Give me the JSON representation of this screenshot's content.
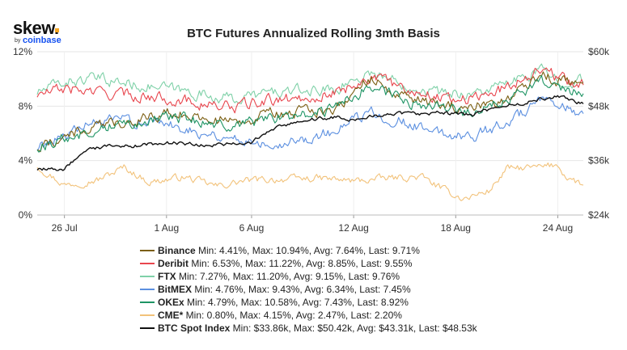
{
  "logo": {
    "main": "skew.",
    "by": "by",
    "brand": "coinbase"
  },
  "chart_data": {
    "type": "line",
    "title": "BTC Futures Annualized Rolling 3mth Basis",
    "y_left": {
      "ticks": [
        "12%",
        "8%",
        "4%",
        "0%"
      ],
      "values": [
        12,
        8,
        4,
        0
      ],
      "range": [
        0,
        12
      ]
    },
    "y_right": {
      "ticks": [
        "$60k",
        "$48k",
        "$36k",
        "$24k"
      ],
      "values": [
        60,
        48,
        36,
        24
      ],
      "range": [
        24,
        60
      ]
    },
    "x_ticks": [
      "26 Jul",
      "1 Aug",
      "6 Aug",
      "12 Aug",
      "18 Aug",
      "24 Aug"
    ],
    "x_tick_days": [
      0,
      6,
      11,
      17,
      23,
      29
    ],
    "x_range_days": [
      -1.6,
      30.5
    ],
    "grid": true,
    "series": [
      {
        "name": "Binance",
        "color": "#7b5e12",
        "axis": "left",
        "stats": "Min: 4.41%, Max: 10.94%, Avg: 7.64%, Last: 9.71%",
        "anchors": [
          [
            -1.6,
            4.9
          ],
          [
            0,
            5.8
          ],
          [
            2,
            6.5
          ],
          [
            4,
            7.0
          ],
          [
            6,
            7.5
          ],
          [
            8,
            7.2
          ],
          [
            10,
            6.8
          ],
          [
            12,
            7.4
          ],
          [
            14,
            7.5
          ],
          [
            16,
            8.0
          ],
          [
            18,
            10.0
          ],
          [
            20,
            8.6
          ],
          [
            22,
            8.0
          ],
          [
            24,
            7.9
          ],
          [
            26,
            8.6
          ],
          [
            27,
            9.4
          ],
          [
            28,
            10.3
          ],
          [
            29,
            9.9
          ],
          [
            30.5,
            9.7
          ]
        ]
      },
      {
        "name": "Deribit",
        "color": "#e8464e",
        "axis": "left",
        "stats": "Min: 6.53%, Max: 11.22%, Avg: 8.85%, Last: 9.55%",
        "anchors": [
          [
            -1.6,
            8.8
          ],
          [
            0,
            9.3
          ],
          [
            2,
            9.0
          ],
          [
            4,
            8.8
          ],
          [
            6,
            8.6
          ],
          [
            8,
            8.2
          ],
          [
            10,
            7.9
          ],
          [
            12,
            8.4
          ],
          [
            14,
            8.6
          ],
          [
            16,
            9.0
          ],
          [
            18,
            10.2
          ],
          [
            20,
            9.3
          ],
          [
            22,
            8.7
          ],
          [
            24,
            8.5
          ],
          [
            26,
            9.4
          ],
          [
            28,
            10.8
          ],
          [
            29,
            10.1
          ],
          [
            30.5,
            9.55
          ]
        ]
      },
      {
        "name": "FTX",
        "color": "#7fd1a8",
        "axis": "left",
        "stats": "Min: 7.27%, Max: 11.20%, Avg: 9.15%, Last: 9.76%",
        "anchors": [
          [
            -1.6,
            9.0
          ],
          [
            0,
            9.8
          ],
          [
            2,
            10.0
          ],
          [
            4,
            9.6
          ],
          [
            6,
            9.3
          ],
          [
            8,
            8.9
          ],
          [
            10,
            8.5
          ],
          [
            12,
            9.0
          ],
          [
            14,
            9.1
          ],
          [
            16,
            9.3
          ],
          [
            18,
            10.5
          ],
          [
            20,
            9.6
          ],
          [
            22,
            9.0
          ],
          [
            24,
            8.9
          ],
          [
            26,
            9.6
          ],
          [
            28,
            10.6
          ],
          [
            29,
            10.0
          ],
          [
            30.5,
            9.76
          ]
        ]
      },
      {
        "name": "BitMEX",
        "color": "#5b8fe0",
        "axis": "left",
        "stats": "Min: 4.76%, Max: 9.43%, Avg: 6.34%, Last: 7.45%",
        "anchors": [
          [
            -1.6,
            4.9
          ],
          [
            0,
            6.0
          ],
          [
            2,
            6.8
          ],
          [
            4,
            7.0
          ],
          [
            6,
            6.7
          ],
          [
            8,
            6.1
          ],
          [
            10,
            5.6
          ],
          [
            12,
            5.3
          ],
          [
            14,
            5.5
          ],
          [
            16,
            6.2
          ],
          [
            18,
            7.6
          ],
          [
            20,
            6.8
          ],
          [
            22,
            6.0
          ],
          [
            24,
            5.8
          ],
          [
            26,
            6.8
          ],
          [
            28,
            8.3
          ],
          [
            29,
            8.0
          ],
          [
            30.5,
            7.45
          ]
        ]
      },
      {
        "name": "OKEx",
        "color": "#1e9464",
        "axis": "left",
        "stats": "Min: 4.79%, Max: 10.58%, Avg: 7.43%, Last: 8.92%",
        "anchors": [
          [
            -1.6,
            4.9
          ],
          [
            0,
            5.6
          ],
          [
            2,
            6.4
          ],
          [
            4,
            6.8
          ],
          [
            6,
            7.2
          ],
          [
            8,
            6.9
          ],
          [
            10,
            6.4
          ],
          [
            12,
            7.1
          ],
          [
            14,
            7.3
          ],
          [
            16,
            7.8
          ],
          [
            18,
            9.6
          ],
          [
            20,
            8.3
          ],
          [
            22,
            7.8
          ],
          [
            24,
            7.6
          ],
          [
            26,
            8.5
          ],
          [
            28,
            9.9
          ],
          [
            29,
            9.4
          ],
          [
            30.5,
            8.92
          ]
        ]
      },
      {
        "name": "CME*",
        "color": "#f2c27a",
        "axis": "left",
        "stats": "Min: 0.80%, Max: 4.15%, Avg: 2.47%, Last: 2.20%",
        "anchors": [
          [
            -1.6,
            3.6
          ],
          [
            0,
            2.2
          ],
          [
            2,
            2.6
          ],
          [
            3.5,
            3.5
          ],
          [
            5,
            2.4
          ],
          [
            7,
            2.8
          ],
          [
            9,
            2.1
          ],
          [
            10.5,
            2.5
          ],
          [
            12,
            2.6
          ],
          [
            15,
            2.7
          ],
          [
            17,
            2.5
          ],
          [
            19,
            2.7
          ],
          [
            21,
            2.8
          ],
          [
            22.5,
            1.7
          ],
          [
            23.5,
            1.2
          ],
          [
            25,
            1.8
          ],
          [
            26,
            3.4
          ],
          [
            28,
            3.5
          ],
          [
            29,
            3.7
          ],
          [
            29.5,
            2.8
          ],
          [
            30.5,
            2.2
          ]
        ]
      },
      {
        "name": "BTC Spot Index",
        "color": "#111111",
        "axis": "right",
        "stats": "Min: $33.86k, Max: $50.42k, Avg: $43.31k, Last: $48.53k",
        "anchors": [
          [
            -1.6,
            34.0
          ],
          [
            0,
            34.2
          ],
          [
            0.8,
            37.0
          ],
          [
            2,
            39.0
          ],
          [
            4,
            39.2
          ],
          [
            6,
            40.0
          ],
          [
            8,
            39.5
          ],
          [
            10,
            39.6
          ],
          [
            11,
            39.9
          ],
          [
            12,
            42.5
          ],
          [
            14,
            45.0
          ],
          [
            16,
            45.6
          ],
          [
            17,
            44.7
          ],
          [
            18,
            46.0
          ],
          [
            20,
            46.3
          ],
          [
            22,
            46.5
          ],
          [
            24,
            46.0
          ],
          [
            25,
            47.2
          ],
          [
            26,
            48.0
          ],
          [
            28,
            49.5
          ],
          [
            29,
            50.2
          ],
          [
            30.5,
            48.53
          ]
        ]
      }
    ]
  }
}
